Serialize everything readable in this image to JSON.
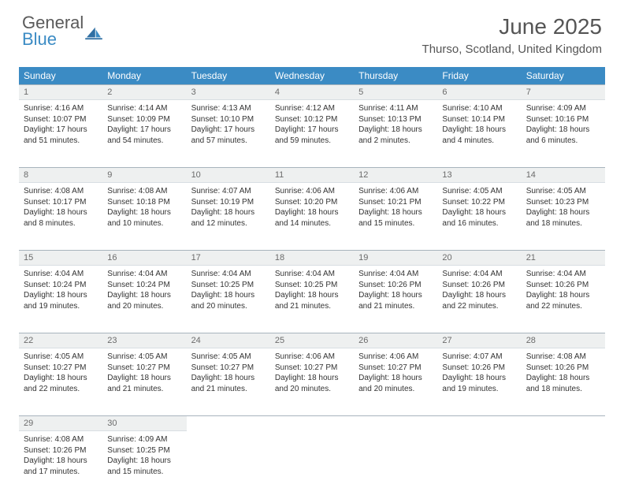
{
  "logo": {
    "word1": "General",
    "word2": "Blue"
  },
  "title": "June 2025",
  "location": "Thurso, Scotland, United Kingdom",
  "colors": {
    "header_bg": "#3b8bc4",
    "header_text": "#ffffff",
    "daynum_bg": "#eef0f0",
    "daynum_text": "#6b6b6b",
    "rule": "#a8b4bd",
    "body_text": "#333333",
    "title_text": "#555555"
  },
  "weekdays": [
    "Sunday",
    "Monday",
    "Tuesday",
    "Wednesday",
    "Thursday",
    "Friday",
    "Saturday"
  ],
  "weeks": [
    [
      {
        "n": "1",
        "sunrise": "4:16 AM",
        "sunset": "10:07 PM",
        "daylight": "17 hours and 51 minutes."
      },
      {
        "n": "2",
        "sunrise": "4:14 AM",
        "sunset": "10:09 PM",
        "daylight": "17 hours and 54 minutes."
      },
      {
        "n": "3",
        "sunrise": "4:13 AM",
        "sunset": "10:10 PM",
        "daylight": "17 hours and 57 minutes."
      },
      {
        "n": "4",
        "sunrise": "4:12 AM",
        "sunset": "10:12 PM",
        "daylight": "17 hours and 59 minutes."
      },
      {
        "n": "5",
        "sunrise": "4:11 AM",
        "sunset": "10:13 PM",
        "daylight": "18 hours and 2 minutes."
      },
      {
        "n": "6",
        "sunrise": "4:10 AM",
        "sunset": "10:14 PM",
        "daylight": "18 hours and 4 minutes."
      },
      {
        "n": "7",
        "sunrise": "4:09 AM",
        "sunset": "10:16 PM",
        "daylight": "18 hours and 6 minutes."
      }
    ],
    [
      {
        "n": "8",
        "sunrise": "4:08 AM",
        "sunset": "10:17 PM",
        "daylight": "18 hours and 8 minutes."
      },
      {
        "n": "9",
        "sunrise": "4:08 AM",
        "sunset": "10:18 PM",
        "daylight": "18 hours and 10 minutes."
      },
      {
        "n": "10",
        "sunrise": "4:07 AM",
        "sunset": "10:19 PM",
        "daylight": "18 hours and 12 minutes."
      },
      {
        "n": "11",
        "sunrise": "4:06 AM",
        "sunset": "10:20 PM",
        "daylight": "18 hours and 14 minutes."
      },
      {
        "n": "12",
        "sunrise": "4:06 AM",
        "sunset": "10:21 PM",
        "daylight": "18 hours and 15 minutes."
      },
      {
        "n": "13",
        "sunrise": "4:05 AM",
        "sunset": "10:22 PM",
        "daylight": "18 hours and 16 minutes."
      },
      {
        "n": "14",
        "sunrise": "4:05 AM",
        "sunset": "10:23 PM",
        "daylight": "18 hours and 18 minutes."
      }
    ],
    [
      {
        "n": "15",
        "sunrise": "4:04 AM",
        "sunset": "10:24 PM",
        "daylight": "18 hours and 19 minutes."
      },
      {
        "n": "16",
        "sunrise": "4:04 AM",
        "sunset": "10:24 PM",
        "daylight": "18 hours and 20 minutes."
      },
      {
        "n": "17",
        "sunrise": "4:04 AM",
        "sunset": "10:25 PM",
        "daylight": "18 hours and 20 minutes."
      },
      {
        "n": "18",
        "sunrise": "4:04 AM",
        "sunset": "10:25 PM",
        "daylight": "18 hours and 21 minutes."
      },
      {
        "n": "19",
        "sunrise": "4:04 AM",
        "sunset": "10:26 PM",
        "daylight": "18 hours and 21 minutes."
      },
      {
        "n": "20",
        "sunrise": "4:04 AM",
        "sunset": "10:26 PM",
        "daylight": "18 hours and 22 minutes."
      },
      {
        "n": "21",
        "sunrise": "4:04 AM",
        "sunset": "10:26 PM",
        "daylight": "18 hours and 22 minutes."
      }
    ],
    [
      {
        "n": "22",
        "sunrise": "4:05 AM",
        "sunset": "10:27 PM",
        "daylight": "18 hours and 22 minutes."
      },
      {
        "n": "23",
        "sunrise": "4:05 AM",
        "sunset": "10:27 PM",
        "daylight": "18 hours and 21 minutes."
      },
      {
        "n": "24",
        "sunrise": "4:05 AM",
        "sunset": "10:27 PM",
        "daylight": "18 hours and 21 minutes."
      },
      {
        "n": "25",
        "sunrise": "4:06 AM",
        "sunset": "10:27 PM",
        "daylight": "18 hours and 20 minutes."
      },
      {
        "n": "26",
        "sunrise": "4:06 AM",
        "sunset": "10:27 PM",
        "daylight": "18 hours and 20 minutes."
      },
      {
        "n": "27",
        "sunrise": "4:07 AM",
        "sunset": "10:26 PM",
        "daylight": "18 hours and 19 minutes."
      },
      {
        "n": "28",
        "sunrise": "4:08 AM",
        "sunset": "10:26 PM",
        "daylight": "18 hours and 18 minutes."
      }
    ],
    [
      {
        "n": "29",
        "sunrise": "4:08 AM",
        "sunset": "10:26 PM",
        "daylight": "18 hours and 17 minutes."
      },
      {
        "n": "30",
        "sunrise": "4:09 AM",
        "sunset": "10:25 PM",
        "daylight": "18 hours and 15 minutes."
      },
      null,
      null,
      null,
      null,
      null
    ]
  ],
  "labels": {
    "sunrise": "Sunrise:",
    "sunset": "Sunset:",
    "daylight": "Daylight:"
  }
}
